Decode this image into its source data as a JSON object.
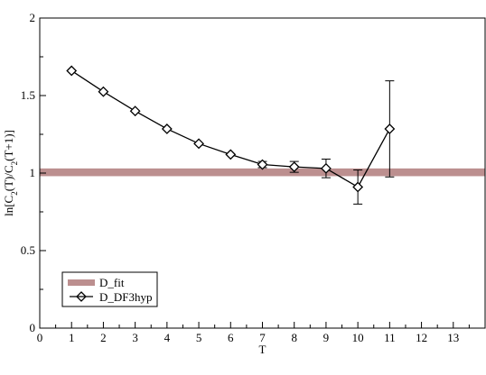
{
  "chart_data": {
    "type": "line",
    "xlabel": "T",
    "ylabel": "ln[C_2(T)/C_2(T+1)]",
    "xlim": [
      0,
      14
    ],
    "ylim": [
      0,
      2
    ],
    "xticks": [
      "0",
      "1",
      "2",
      "3",
      "4",
      "5",
      "6",
      "7",
      "8",
      "9",
      "10",
      "11",
      "12",
      "13"
    ],
    "yticks": [
      "0",
      "0.5",
      "1",
      "1.5",
      "2"
    ],
    "grid": false,
    "legend_position": "bottom-left",
    "band": {
      "name": "D_fit",
      "color": "#bc8f8f",
      "y_low": 0.98,
      "y_high": 1.03
    },
    "series": [
      {
        "name": "D_DF3hyp",
        "color": "#000000",
        "marker": "diamond",
        "x": [
          1,
          2,
          3,
          4,
          5,
          6,
          7,
          8,
          9,
          10,
          11
        ],
        "values": [
          1.66,
          1.525,
          1.4,
          1.285,
          1.19,
          1.12,
          1.055,
          1.04,
          1.03,
          0.91,
          1.285
        ],
        "errors": [
          0.005,
          0.005,
          0.005,
          0.008,
          0.008,
          0.012,
          0.02,
          0.035,
          0.06,
          0.11,
          0.31
        ]
      }
    ]
  }
}
